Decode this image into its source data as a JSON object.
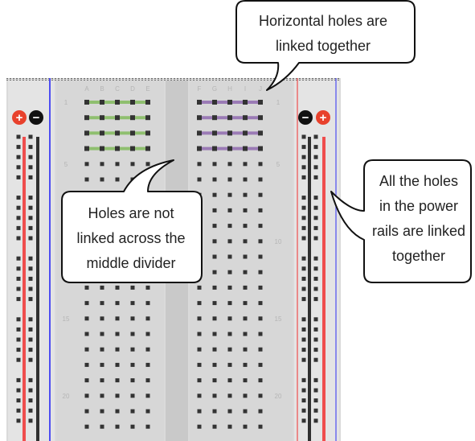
{
  "colors": {
    "board": "#d9d9d9",
    "board_light": "#e3e3e3",
    "divider": "#c8c8c8",
    "hole": "#333333",
    "label": "#b5b5b5",
    "rail_red": "#ef4d4d",
    "rail_black": "#303030",
    "rail_blue": "#4d4df2",
    "link_green": "#8fbf6f",
    "link_purple": "#9b7bb6",
    "plus_badge": "#e8412c",
    "minus_badge": "#111111",
    "callout_border": "#111111"
  },
  "breadboard": {
    "left_columns": [
      "A",
      "B",
      "C",
      "D",
      "E"
    ],
    "right_columns": [
      "F",
      "G",
      "H",
      "I",
      "J"
    ],
    "row_numbers": [
      "1",
      "5",
      "10",
      "15",
      "20"
    ],
    "row_count": 24,
    "linked_rows": 4
  },
  "power_rails": {
    "left_symbols": [
      "+",
      "−"
    ],
    "right_symbols": [
      "−",
      "+"
    ]
  },
  "callouts": {
    "horizontal": [
      "Horizontal holes are",
      "linked together"
    ],
    "divider": [
      "Holes are not",
      "linked across the",
      "middle divider"
    ],
    "power": [
      "All the holes",
      "in the power",
      "rails are linked",
      "together"
    ]
  }
}
